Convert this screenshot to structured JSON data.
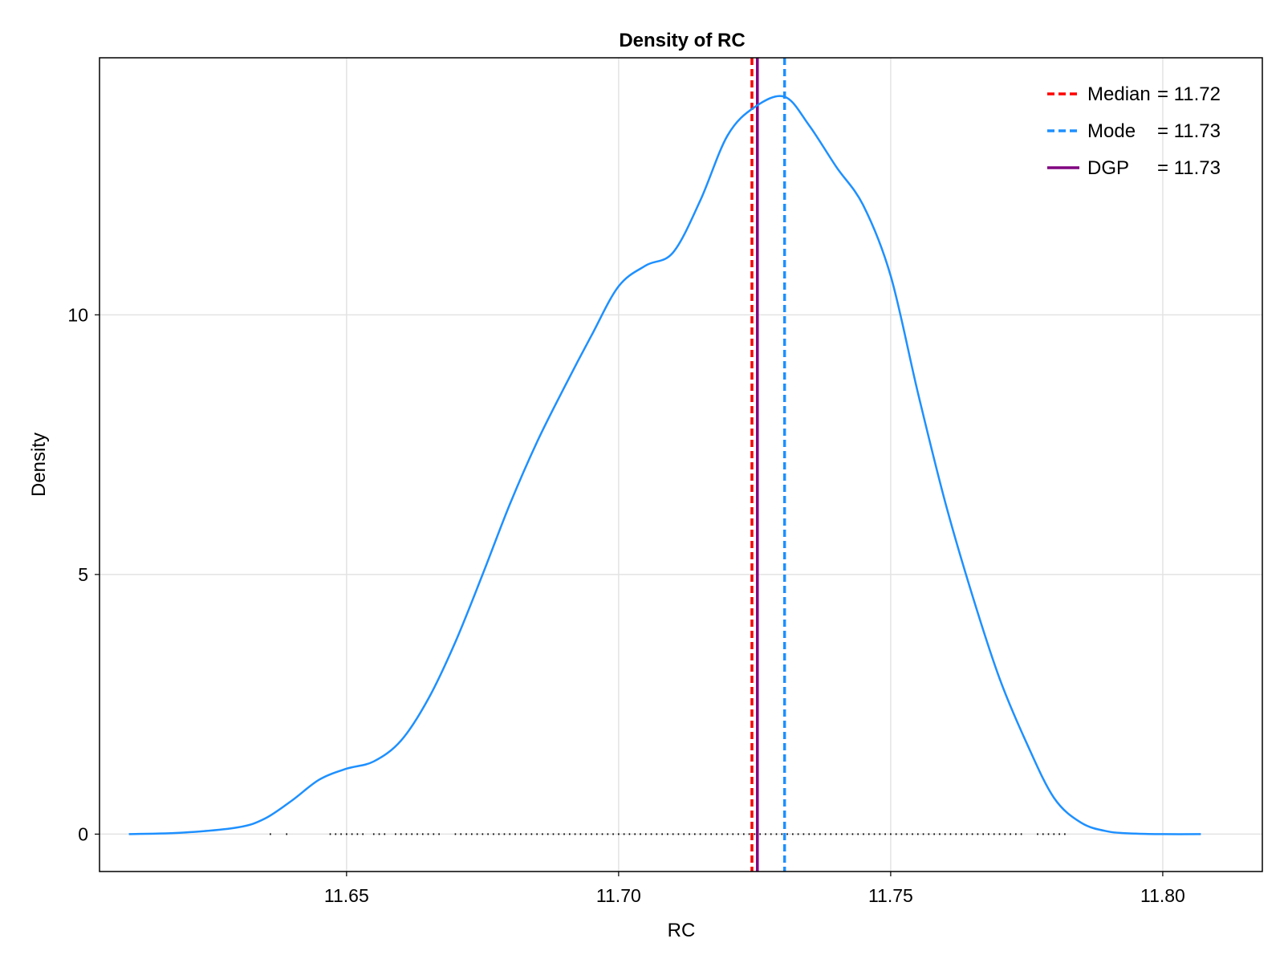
{
  "chart_data": {
    "type": "line",
    "title": "Density of RC",
    "xlabel": "RC",
    "ylabel": "Density",
    "xlim": [
      11.6046,
      11.8183
    ],
    "ylim": [
      -0.72,
      14.95
    ],
    "xticks": [
      11.65,
      11.7,
      11.75,
      11.8
    ],
    "xtick_labels": [
      "11.65",
      "11.70",
      "11.75",
      "11.80"
    ],
    "yticks": [
      0,
      5,
      10
    ],
    "ytick_labels": [
      "0",
      "5",
      "10"
    ],
    "grid": true,
    "legend_position": "top-right",
    "series": [
      {
        "kind": "density",
        "color": "#1e90ff",
        "x": [
          11.61,
          11.62,
          11.63,
          11.635,
          11.64,
          11.645,
          11.65,
          11.655,
          11.66,
          11.665,
          11.67,
          11.675,
          11.68,
          11.685,
          11.69,
          11.695,
          11.7,
          11.705,
          11.71,
          11.715,
          11.72,
          11.725,
          11.7305,
          11.735,
          11.74,
          11.745,
          11.75,
          11.755,
          11.76,
          11.765,
          11.77,
          11.775,
          11.78,
          11.785,
          11.79,
          11.795,
          11.8,
          11.807
        ],
        "y": [
          0.0,
          0.03,
          0.13,
          0.3,
          0.65,
          1.05,
          1.26,
          1.4,
          1.8,
          2.6,
          3.7,
          5.0,
          6.35,
          7.55,
          8.6,
          9.6,
          10.55,
          10.95,
          11.2,
          12.2,
          13.45,
          14.0,
          14.2,
          13.65,
          12.85,
          12.1,
          10.75,
          8.5,
          6.4,
          4.6,
          3.0,
          1.75,
          0.7,
          0.22,
          0.05,
          0.01,
          0.0,
          0.0
        ]
      }
    ],
    "rug": {
      "color": "#000000",
      "y": 0,
      "x": [
        11.636,
        11.639,
        11.647,
        11.648,
        11.649,
        11.65,
        11.651,
        11.652,
        11.653,
        11.655,
        11.656,
        11.657,
        11.659,
        11.66,
        11.661,
        11.662,
        11.663,
        11.664,
        11.665,
        11.666,
        11.667,
        11.67,
        11.671,
        11.672,
        11.673,
        11.674,
        11.675,
        11.676,
        11.677,
        11.678,
        11.679,
        11.68,
        11.681,
        11.682,
        11.683,
        11.684,
        11.685,
        11.686,
        11.687,
        11.688,
        11.689,
        11.69,
        11.691,
        11.692,
        11.693,
        11.694,
        11.695,
        11.696,
        11.697,
        11.698,
        11.699,
        11.7,
        11.701,
        11.702,
        11.703,
        11.704,
        11.705,
        11.706,
        11.707,
        11.708,
        11.709,
        11.71,
        11.711,
        11.712,
        11.713,
        11.714,
        11.715,
        11.716,
        11.717,
        11.718,
        11.719,
        11.72,
        11.721,
        11.722,
        11.723,
        11.724,
        11.725,
        11.726,
        11.727,
        11.728,
        11.729,
        11.73,
        11.731,
        11.732,
        11.733,
        11.734,
        11.735,
        11.736,
        11.737,
        11.738,
        11.739,
        11.74,
        11.741,
        11.742,
        11.743,
        11.744,
        11.745,
        11.746,
        11.747,
        11.748,
        11.749,
        11.75,
        11.751,
        11.752,
        11.753,
        11.754,
        11.755,
        11.756,
        11.757,
        11.758,
        11.759,
        11.76,
        11.761,
        11.762,
        11.763,
        11.764,
        11.765,
        11.766,
        11.767,
        11.768,
        11.769,
        11.77,
        11.771,
        11.772,
        11.773,
        11.774,
        11.777,
        11.778,
        11.779,
        11.78,
        11.781,
        11.782
      ]
    },
    "reference_lines": [
      {
        "label": "Median",
        "value_text": "= 11.72",
        "x": 11.7245,
        "color": "#ff0000",
        "style": "dashed"
      },
      {
        "label": "Mode",
        "value_text": "= 11.73",
        "x": 11.7305,
        "color": "#1e90ff",
        "style": "dashed"
      },
      {
        "label": "DGP",
        "value_text": "= 11.73",
        "x": 11.7255,
        "color": "#800080",
        "style": "solid"
      }
    ]
  }
}
